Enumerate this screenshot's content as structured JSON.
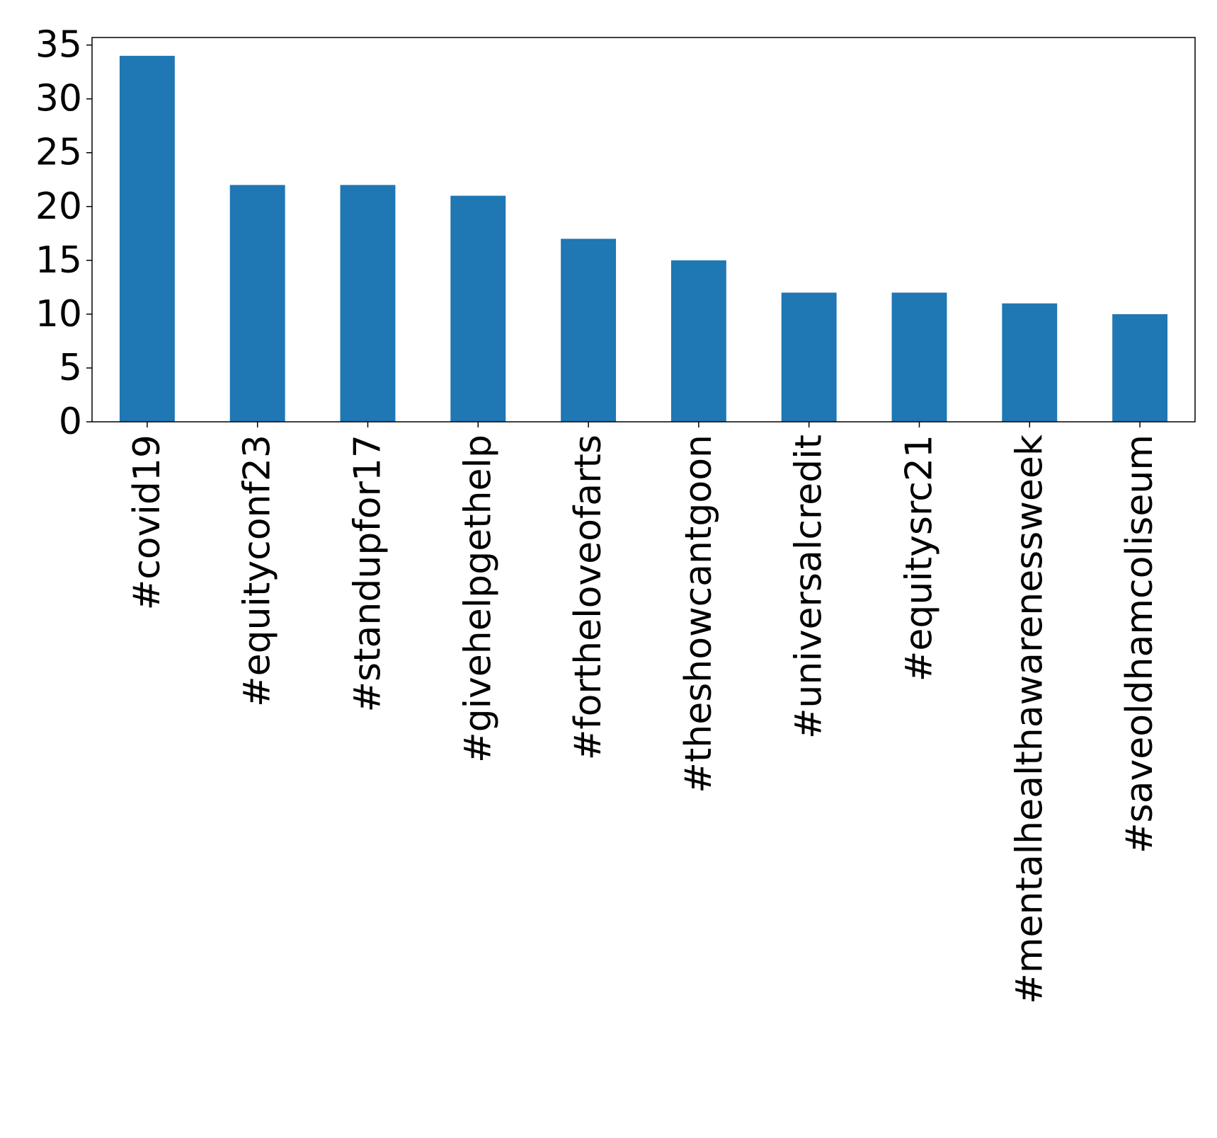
{
  "chart_data": {
    "type": "bar",
    "title": "",
    "xlabel": "",
    "ylabel": "",
    "categories": [
      "#covid19",
      "#equityconf23",
      "#standupfor17",
      "#givehelpgethelp",
      "#fortheloveofarts",
      "#theshowcantgoon",
      "#universalcredit",
      "#equitysrc21",
      "#mentalhealthawarenessweek",
      "#saveoldhamcoliseum"
    ],
    "values": [
      34,
      22,
      22,
      21,
      17,
      15,
      12,
      12,
      11,
      10
    ],
    "ylim": [
      0,
      35.7
    ],
    "yticks": [
      0,
      5,
      10,
      15,
      20,
      25,
      30,
      35
    ],
    "bar_color": "#1f77b4",
    "grid": false,
    "legend": "none"
  }
}
